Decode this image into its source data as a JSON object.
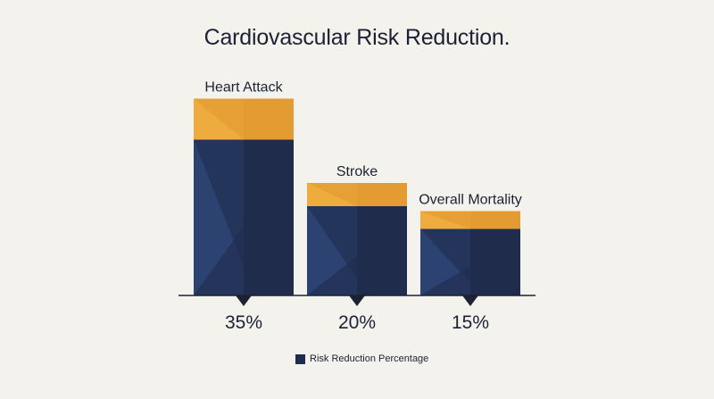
{
  "chart_data": {
    "type": "bar",
    "title": "Cardiovascular Risk Reduction.",
    "categories": [
      "Heart Attack",
      "Stroke",
      "Overall Mortality"
    ],
    "values": [
      35,
      20,
      15
    ],
    "value_labels": [
      "35%",
      "20%",
      "15%"
    ],
    "series": [
      {
        "name": "Risk Reduction Percentage",
        "values": [
          35,
          20,
          15
        ]
      }
    ],
    "xlabel": "",
    "ylabel": "",
    "ylim": [
      0,
      40
    ],
    "grid": false,
    "legend_position": "bottom-center",
    "colors": {
      "bar_dark": "#1f2c4c",
      "bar_shade": "#2c4270",
      "bar_top": "#e39b32",
      "bar_top_light": "#efac3e",
      "axis": "#1c2233",
      "text": "#1c2233"
    }
  }
}
